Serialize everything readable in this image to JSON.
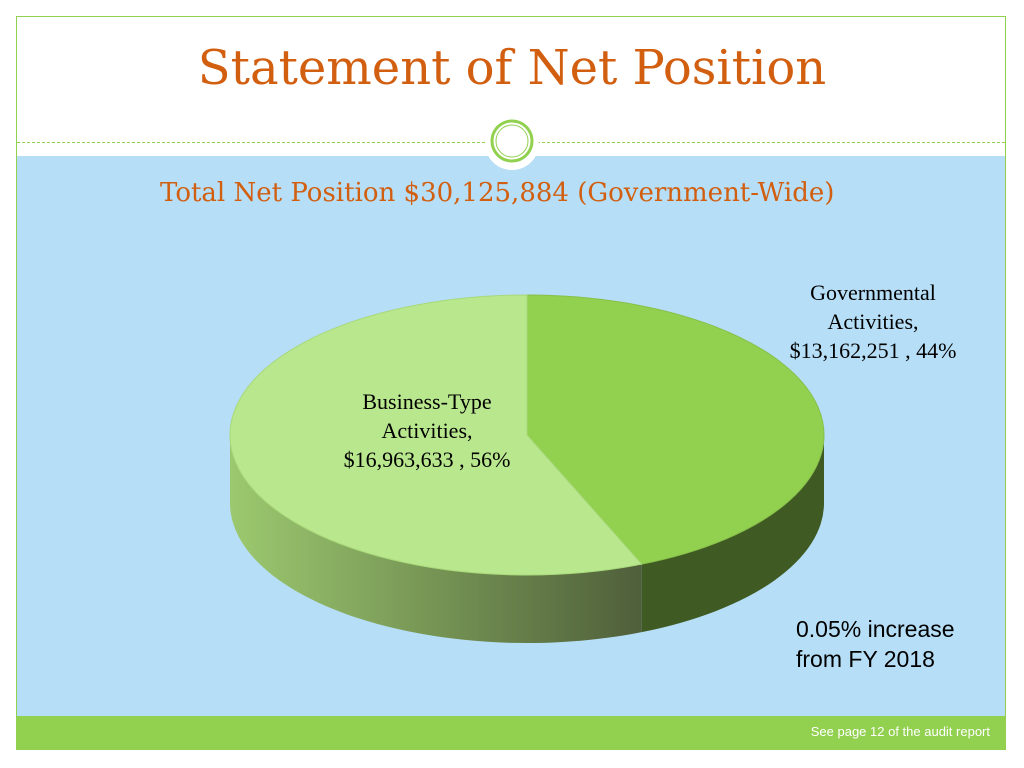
{
  "title": "Statement of Net Position",
  "subtitle": "Total Net Position  $30,125,884 (Government-Wide)",
  "note": [
    "0.05% increase",
    "from FY 2018"
  ],
  "footer": "See page 12 of the audit report",
  "colors": {
    "accent": "#92d050",
    "title": "#d25e0f",
    "background": "#b6def6",
    "governmental": "#92d050",
    "business": "#b9e78e"
  },
  "chart_data": {
    "type": "pie",
    "title": "",
    "slices": [
      {
        "name": "Governmental Activities",
        "value": 13162251,
        "percent": 44,
        "label_lines": [
          "Governmental",
          "Activities,",
          "$13,162,251 , 44%"
        ]
      },
      {
        "name": "Business-Type Activities",
        "value": 16963633,
        "percent": 56,
        "label_lines": [
          "Business-Type",
          "Activities,",
          "$16,963,633 , 56%"
        ]
      }
    ],
    "style": "3d"
  }
}
